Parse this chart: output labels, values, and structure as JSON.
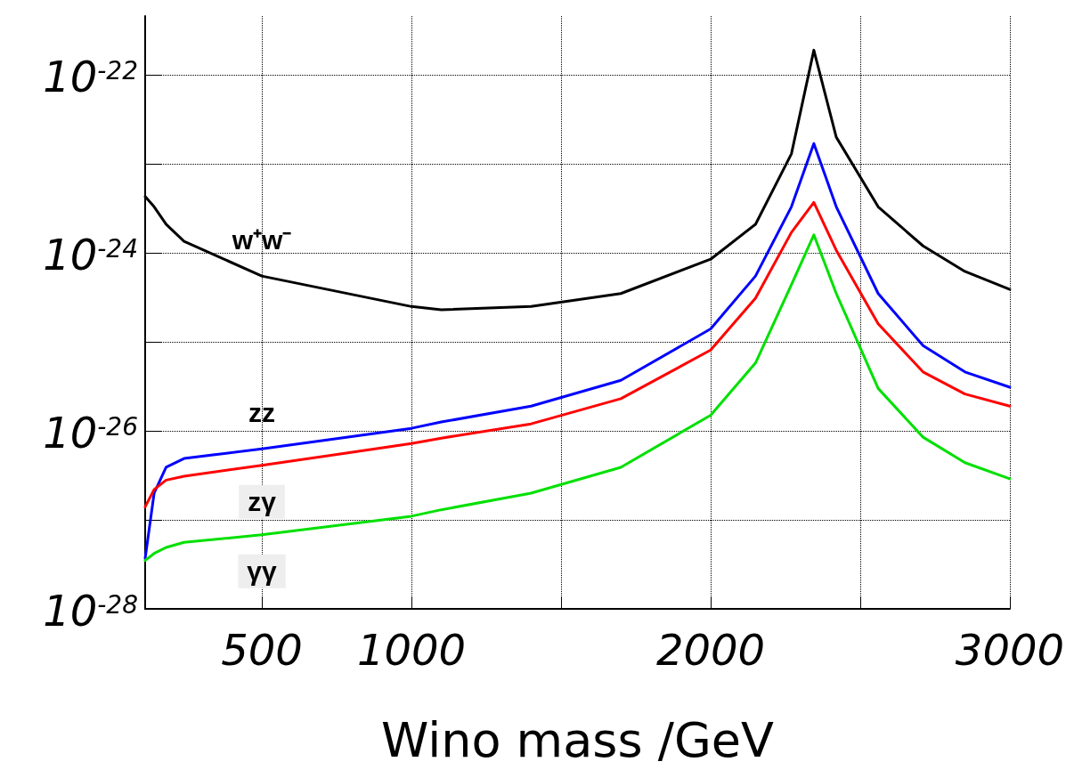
{
  "chart_data": {
    "type": "line",
    "xlabel": "Wino mass /GeV",
    "log": "y",
    "grid": true,
    "legend": false,
    "marker": "none",
    "x": [
      110,
      140,
      180,
      240,
      500,
      1000,
      1100,
      1400,
      1700,
      2000,
      2150,
      2270,
      2345,
      2420,
      2560,
      2710,
      2850,
      3000
    ],
    "xlim": [
      110,
      3000
    ],
    "xticks": [
      500,
      1000,
      {
        "value": 1500,
        "label": null
      },
      2000,
      {
        "value": 2500,
        "label": null
      },
      3000
    ],
    "ylim": [
      1e-28,
      4.6e-22
    ],
    "yticks": [
      {
        "value": 1e-28,
        "label": "10$^{-28}$"
      },
      {
        "value": 1e-27,
        "label": null
      },
      {
        "value": 1e-26,
        "label": "10$^{-26}$"
      },
      {
        "value": 1e-25,
        "label": null
      },
      {
        "value": 1e-24,
        "label": "10$^{-24}$"
      },
      {
        "value": 1e-23,
        "label": null
      },
      {
        "value": 1e-22,
        "label": "10$^{-22}$"
      }
    ],
    "series": [
      {
        "name": "w⁺w⁻",
        "color": "#000000",
        "values": [
          4.3e-24,
          3.3e-24,
          2.1e-24,
          1.35e-24,
          5.5e-25,
          2.5e-25,
          2.3e-25,
          2.5e-25,
          3.5e-25,
          8.5e-25,
          2.1e-24,
          1.3e-23,
          1.9e-22,
          2e-23,
          3.3e-24,
          1.2e-24,
          6.2e-25,
          3.9e-25
        ]
      },
      {
        "name": "zz",
        "color": "#0000ff",
        "values": [
          3.7e-28,
          2e-27,
          3.9e-27,
          4.9e-27,
          6.3e-27,
          1.07e-26,
          1.26e-26,
          1.9e-26,
          3.7e-26,
          1.4e-25,
          5.5e-25,
          3.3e-24,
          1.7e-23,
          3.3e-24,
          3.5e-25,
          9.1e-26,
          4.6e-26,
          3.1e-26
        ]
      },
      {
        "name": "zγ",
        "color": "#ff0000",
        "values": [
          1.4e-27,
          2.2e-27,
          2.8e-27,
          3.1e-27,
          4.1e-27,
          7.2e-27,
          8.3e-27,
          1.2e-26,
          2.3e-26,
          8.1e-26,
          3.1e-25,
          1.7e-24,
          3.7e-24,
          1.07e-24,
          1.6e-25,
          4.6e-26,
          2.6e-26,
          1.9e-26
        ]
      },
      {
        "name": "γγ",
        "color": "#00e000",
        "values": [
          3.5e-28,
          4.2e-28,
          4.9e-28,
          5.6e-28,
          6.8e-28,
          1.1e-27,
          1.3e-27,
          2e-27,
          3.9e-27,
          1.5e-26,
          5.8e-26,
          4.4e-25,
          1.6e-24,
          3.5e-25,
          3e-26,
          8.5e-27,
          4.4e-27,
          2.9e-27
        ]
      }
    ]
  }
}
